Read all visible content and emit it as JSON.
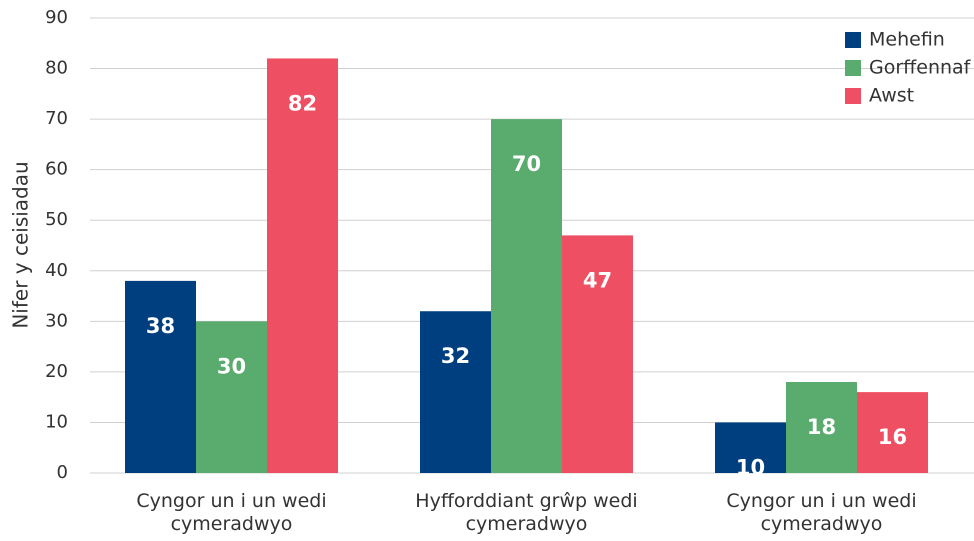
{
  "chart_data": {
    "type": "bar",
    "ylabel": "Nifer y ceisiadau",
    "categories": [
      "Cyngor un i un wedi cymeradwyo",
      "Hyfforddiant grŵp wedi cymeradwyo",
      "Cyngor un i un wedi cymeradwyo"
    ],
    "series": [
      {
        "name": "Mehefin",
        "color": "#003f7f",
        "values": [
          38,
          32,
          10
        ]
      },
      {
        "name": "Gorffennaf",
        "color": "#5aab6e",
        "values": [
          30,
          70,
          18
        ]
      },
      {
        "name": "Awst",
        "color": "#ef4f63",
        "values": [
          82,
          47,
          16
        ]
      }
    ],
    "ylim": [
      0,
      90
    ],
    "yticks": [
      0,
      10,
      20,
      30,
      40,
      50,
      60,
      70,
      80,
      90
    ],
    "grid": true,
    "legend": "top-right"
  }
}
